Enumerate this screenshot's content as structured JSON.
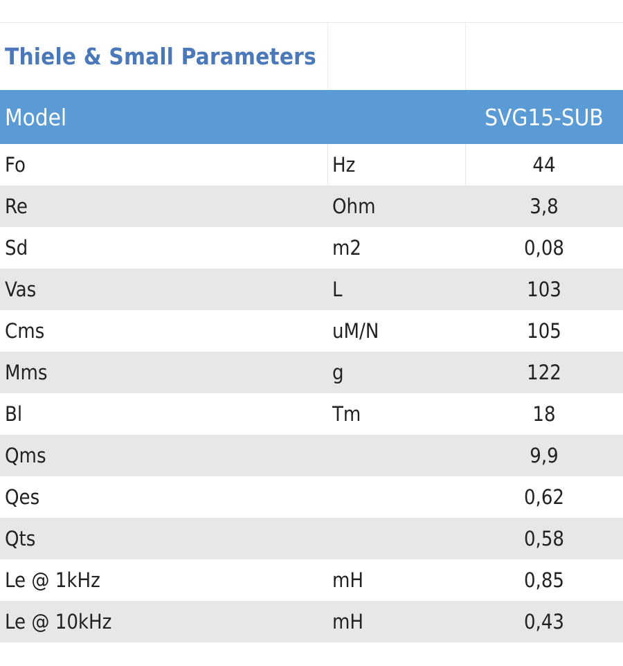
{
  "table": {
    "title": "Thiele & Small Parameters",
    "header": {
      "label": "Model",
      "unit": "",
      "value": "SVG15-SUB"
    },
    "rows": [
      {
        "param": "Fo",
        "unit": "Hz",
        "value": "44"
      },
      {
        "param": "Re",
        "unit": "Ohm",
        "value": "3,8"
      },
      {
        "param": "Sd",
        "unit": "m2",
        "value": "0,08"
      },
      {
        "param": "Vas",
        "unit": "L",
        "value": "103"
      },
      {
        "param": "Cms",
        "unit": "uM/N",
        "value": "105"
      },
      {
        "param": "Mms",
        "unit": "g",
        "value": "122"
      },
      {
        "param": "Bl",
        "unit": "Tm",
        "value": "18"
      },
      {
        "param": "Qms",
        "unit": "",
        "value": "9,9"
      },
      {
        "param": "Qes",
        "unit": "",
        "value": "0,62"
      },
      {
        "param": "Qts",
        "unit": "",
        "value": "0,58"
      },
      {
        "param": "Le @ 1kHz",
        "unit": "mH",
        "value": "0,85"
      },
      {
        "param": "Le @ 10kHz",
        "unit": "mH",
        "value": "0,43"
      }
    ]
  },
  "colors": {
    "title_text": "#4a78b8",
    "header_bg": "#5b9bd5",
    "header_text": "#ffffff",
    "row_alt_bg": "#e7e7e7"
  }
}
